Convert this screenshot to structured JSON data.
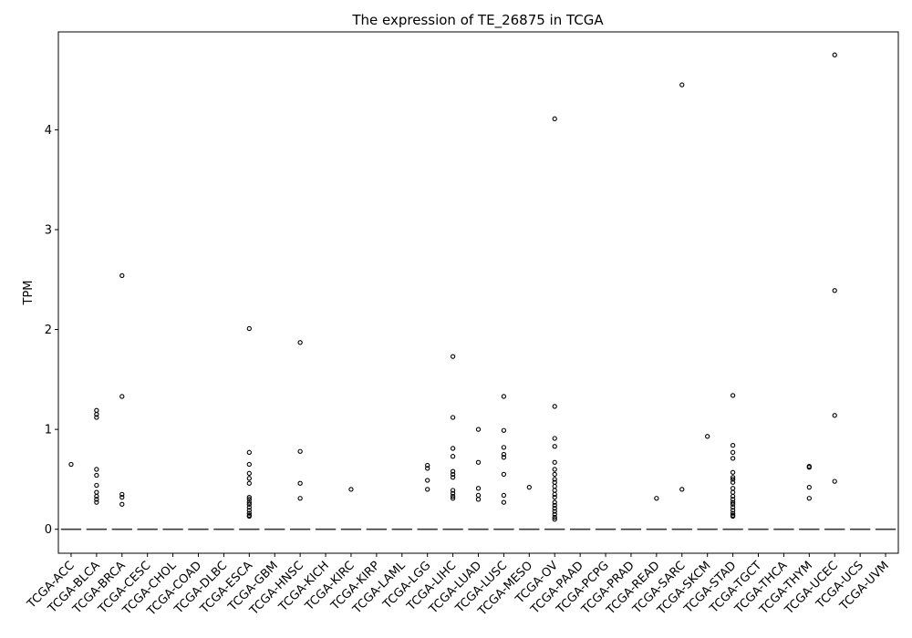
{
  "chart_data": {
    "type": "box",
    "title": "The expression of TE_26875 in TCGA",
    "xlabel": "",
    "ylabel": "TPM",
    "ylim": [
      -0.24,
      4.98
    ],
    "yticks": [
      0,
      1,
      2,
      3,
      4
    ],
    "grid": false,
    "legend": "none",
    "categories": [
      "TCGA-ACC",
      "TCGA-BLCA",
      "TCGA-BRCA",
      "TCGA-CESC",
      "TCGA-CHOL",
      "TCGA-COAD",
      "TCGA-DLBC",
      "TCGA-ESCA",
      "TCGA-GBM",
      "TCGA-HNSC",
      "TCGA-KICH",
      "TCGA-KIRC",
      "TCGA-KIRP",
      "TCGA-LAML",
      "TCGA-LGG",
      "TCGA-LIHC",
      "TCGA-LUAD",
      "TCGA-LUSC",
      "TCGA-MESO",
      "TCGA-OV",
      "TCGA-PAAD",
      "TCGA-PCPG",
      "TCGA-PRAD",
      "TCGA-READ",
      "TCGA-SARC",
      "TCGA-SKCM",
      "TCGA-STAD",
      "TCGA-TGCT",
      "TCGA-THCA",
      "TCGA-THYM",
      "TCGA-UCEC",
      "TCGA-UCS",
      "TCGA-UVM"
    ],
    "median": [
      0,
      0,
      0,
      0,
      0,
      0,
      0,
      0,
      0,
      0,
      0,
      0,
      0,
      0,
      0,
      0,
      0,
      0,
      0,
      0,
      0,
      0,
      0,
      0,
      0,
      0,
      0,
      0,
      0,
      0,
      0,
      0,
      0
    ],
    "outliers": [
      [
        0.65
      ],
      [
        1.19,
        1.15,
        1.12,
        0.6,
        0.54,
        0.44,
        0.37,
        0.33,
        0.3,
        0.27
      ],
      [
        2.54,
        1.33,
        0.35,
        0.32,
        0.25
      ],
      [],
      [],
      [],
      [],
      [
        2.01,
        0.77,
        0.65,
        0.56,
        0.51,
        0.46,
        0.32,
        0.3,
        0.27,
        0.25,
        0.22,
        0.19,
        0.16,
        0.14,
        0.13
      ],
      [],
      [
        1.87,
        0.78,
        0.46,
        0.31
      ],
      [],
      [
        0.4
      ],
      [],
      [],
      [
        0.64,
        0.61,
        0.49,
        0.4
      ],
      [
        1.73,
        1.12,
        0.81,
        0.73,
        0.58,
        0.55,
        0.52,
        0.39,
        0.36,
        0.33,
        0.31
      ],
      [
        1.0,
        0.67,
        0.41,
        0.34,
        0.3
      ],
      [
        1.33,
        0.99,
        0.82,
        0.75,
        0.72,
        0.55,
        0.34,
        0.27
      ],
      [
        0.42
      ],
      [
        4.11,
        1.23,
        0.91,
        0.83,
        0.67,
        0.6,
        0.55,
        0.5,
        0.47,
        0.43,
        0.39,
        0.35,
        0.32,
        0.27,
        0.24,
        0.21,
        0.18,
        0.15,
        0.12,
        0.1
      ],
      [],
      [],
      [],
      [
        0.31
      ],
      [
        4.45,
        0.4
      ],
      [
        0.93
      ],
      [
        1.34,
        0.84,
        0.77,
        0.71,
        0.57,
        0.52,
        0.5,
        0.47,
        0.41,
        0.37,
        0.33,
        0.3,
        0.27,
        0.25,
        0.22,
        0.19,
        0.16,
        0.14,
        0.13
      ],
      [],
      [],
      [
        0.63,
        0.62,
        0.42,
        0.31
      ],
      [
        4.75,
        2.39,
        1.14,
        0.48
      ],
      [],
      []
    ]
  }
}
